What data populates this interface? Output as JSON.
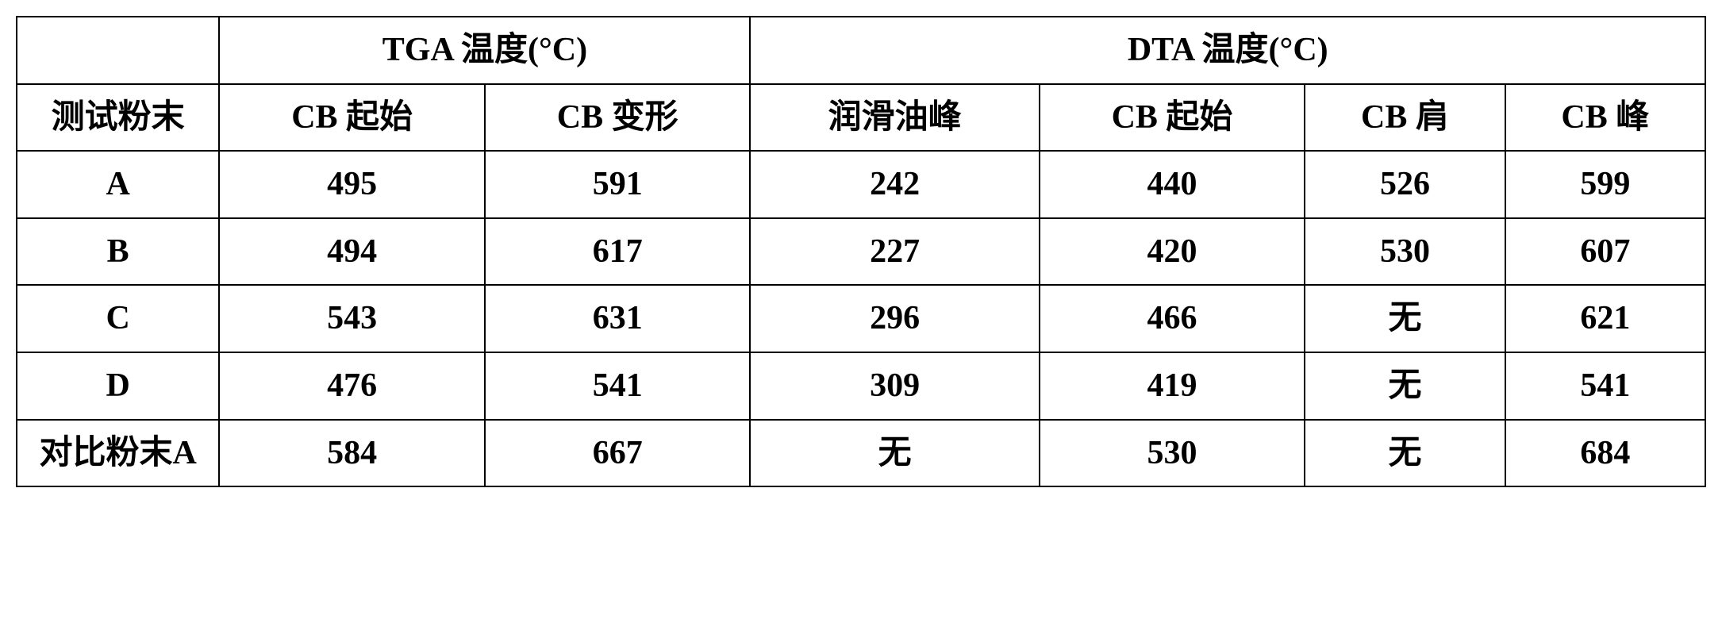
{
  "table": {
    "headers": {
      "empty": "",
      "group1": "TGA 温度(°C)",
      "group2": "DTA 温度(°C)"
    },
    "subheaders": {
      "col0": "测试粉末",
      "col1": "CB 起始",
      "col2": "CB 变形",
      "col3": "润滑油峰",
      "col4": "CB 起始",
      "col5": "CB 肩",
      "col6": "CB 峰"
    },
    "rows": [
      {
        "label": "A",
        "c1": "495",
        "c2": "591",
        "c3": "242",
        "c4": "440",
        "c5": "526",
        "c6": "599"
      },
      {
        "label": "B",
        "c1": "494",
        "c2": "617",
        "c3": "227",
        "c4": "420",
        "c5": "530",
        "c6": "607"
      },
      {
        "label": "C",
        "c1": "543",
        "c2": "631",
        "c3": "296",
        "c4": "466",
        "c5": "无",
        "c6": "621"
      },
      {
        "label": "D",
        "c1": "476",
        "c2": "541",
        "c3": "309",
        "c4": "419",
        "c5": "无",
        "c6": "541"
      },
      {
        "label": "对比粉末A",
        "c1": "584",
        "c2": "667",
        "c3": "无",
        "c4": "530",
        "c5": "无",
        "c6": "684"
      }
    ],
    "style": {
      "border_color": "#000000",
      "background_color": "#ffffff",
      "text_color": "#000000",
      "font_size": 42,
      "font_weight": "bold",
      "col_widths_pct": [
        12,
        14.67,
        14.67,
        14.67,
        14.67,
        14.67,
        14.67
      ]
    }
  }
}
